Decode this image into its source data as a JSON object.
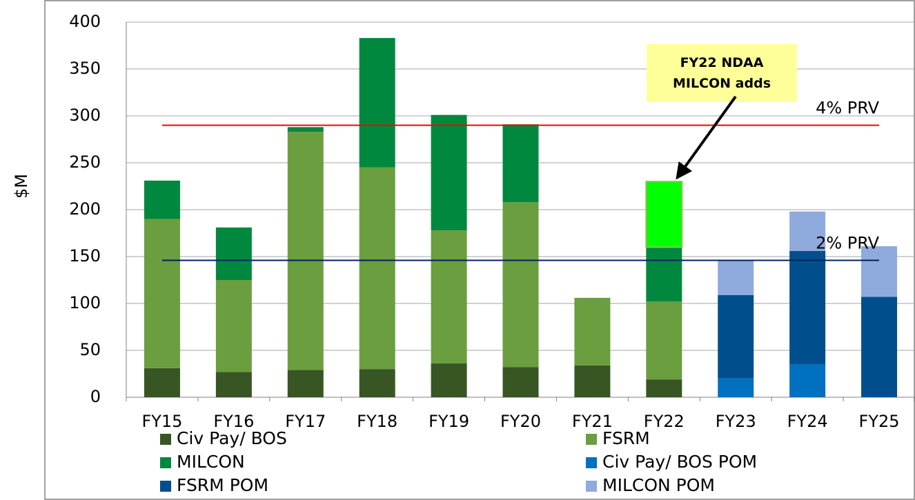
{
  "chart_data": {
    "type": "bar",
    "stacked": true,
    "ylabel": "$M",
    "categories": [
      "FY15",
      "FY16",
      "FY17",
      "FY18",
      "FY19",
      "FY20",
      "FY21",
      "FY22",
      "FY23",
      "FY24",
      "FY25"
    ],
    "series": [
      {
        "name": "Civ Pay/ BOS",
        "color": "#375623",
        "values": [
          31,
          27,
          29,
          30,
          36,
          32,
          34,
          19,
          null,
          null,
          null
        ]
      },
      {
        "name": "FSRM",
        "color": "#6a9e3f",
        "values": [
          159,
          98,
          254,
          215,
          142,
          176,
          72,
          83,
          null,
          null,
          null
        ]
      },
      {
        "name": "MILCON",
        "color": "#00883e",
        "values": [
          41,
          56,
          5,
          138,
          123,
          83,
          null,
          58,
          null,
          null,
          null
        ]
      },
      {
        "name": "Civ Pay/ BOS POM",
        "color": "#0070c0",
        "values": [
          null,
          null,
          null,
          null,
          null,
          null,
          null,
          null,
          20,
          35,
          null
        ]
      },
      {
        "name": "FSRM POM",
        "color": "#004f8c",
        "values": [
          null,
          null,
          null,
          null,
          null,
          null,
          null,
          null,
          89,
          121,
          107
        ]
      },
      {
        "name": "MILCON POM",
        "color": "#8faadc",
        "values": [
          null,
          null,
          null,
          null,
          null,
          null,
          null,
          null,
          37,
          42,
          54
        ]
      },
      {
        "color": "#00ff00",
        "in_legend": false,
        "values": [
          null,
          null,
          null,
          null,
          null,
          null,
          null,
          70,
          null,
          null,
          null
        ]
      }
    ],
    "reference_lines": [
      {
        "label": "4% PRV",
        "value": 290,
        "color": "#ff0000"
      },
      {
        "label": "2% PRV",
        "value": 146,
        "color": "#002060"
      }
    ],
    "annotation": {
      "text": "FY22 NDAA MILCON adds",
      "color": "#ffff99"
    },
    "ylim": [
      0,
      400
    ],
    "yticks": [
      0,
      50,
      100,
      150,
      200,
      250,
      300,
      350,
      400
    ],
    "grid": true
  }
}
